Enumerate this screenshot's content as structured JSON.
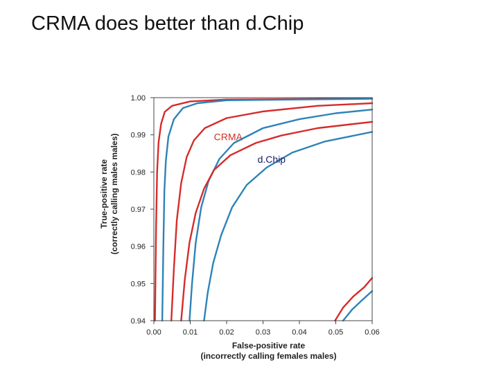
{
  "slide": {
    "title": "CRMA does better than d.Chip"
  },
  "chart_data": {
    "type": "line",
    "title": "",
    "xlabel": [
      "False-positive rate",
      "(incorrectly calling females males)"
    ],
    "ylabel": [
      "True-positive rate",
      "(correctly calling males males)"
    ],
    "xlim": [
      0.0,
      0.06
    ],
    "ylim": [
      0.94,
      1.0
    ],
    "x_ticks": [
      "0.00",
      "0.01",
      "0.02",
      "0.03",
      "0.04",
      "0.05",
      "0.06"
    ],
    "y_ticks": [
      "1.00",
      "0.99",
      "0.98",
      "0.97",
      "0.96",
      "0.95",
      "0.94"
    ],
    "annotations": [
      {
        "text": "CRMA",
        "color": "#cc3322",
        "at": [
          0.0165,
          0.9885
        ]
      },
      {
        "text": "d.Chip",
        "color": "#1a1a66",
        "at": [
          0.0285,
          0.9825
        ]
      }
    ],
    "colors": {
      "CRMA": "#d62b2b",
      "dChip": "#2d82b8"
    },
    "series": [
      {
        "method": "CRMA",
        "values": [
          [
            0.0003,
            0.94
          ],
          [
            0.0006,
            0.965
          ],
          [
            0.0009,
            0.98
          ],
          [
            0.0013,
            0.988
          ],
          [
            0.002,
            0.993
          ],
          [
            0.003,
            0.9962
          ],
          [
            0.005,
            0.9978
          ],
          [
            0.01,
            0.999
          ],
          [
            0.02,
            0.9995
          ],
          [
            0.06,
            0.9998
          ]
        ]
      },
      {
        "method": "dChip",
        "values": [
          [
            0.0023,
            0.94
          ],
          [
            0.0026,
            0.96
          ],
          [
            0.0029,
            0.975
          ],
          [
            0.0033,
            0.983
          ],
          [
            0.004,
            0.9895
          ],
          [
            0.0055,
            0.9942
          ],
          [
            0.008,
            0.9972
          ],
          [
            0.012,
            0.9985
          ],
          [
            0.02,
            0.9993
          ],
          [
            0.06,
            0.9997
          ]
        ]
      },
      {
        "method": "CRMA",
        "values": [
          [
            0.0048,
            0.94
          ],
          [
            0.0055,
            0.954
          ],
          [
            0.0063,
            0.967
          ],
          [
            0.0075,
            0.977
          ],
          [
            0.009,
            0.984
          ],
          [
            0.011,
            0.9885
          ],
          [
            0.014,
            0.9918
          ],
          [
            0.02,
            0.9945
          ],
          [
            0.03,
            0.9963
          ],
          [
            0.045,
            0.9978
          ],
          [
            0.06,
            0.9985
          ]
        ]
      },
      {
        "method": "dChip",
        "values": [
          [
            0.0098,
            0.94
          ],
          [
            0.0105,
            0.95
          ],
          [
            0.0115,
            0.961
          ],
          [
            0.013,
            0.9705
          ],
          [
            0.015,
            0.9775
          ],
          [
            0.018,
            0.9835
          ],
          [
            0.022,
            0.9878
          ],
          [
            0.03,
            0.9918
          ],
          [
            0.04,
            0.9942
          ],
          [
            0.05,
            0.9958
          ],
          [
            0.06,
            0.9968
          ]
        ]
      },
      {
        "method": "CRMA",
        "values": [
          [
            0.0075,
            0.94
          ],
          [
            0.0085,
            0.951
          ],
          [
            0.0098,
            0.961
          ],
          [
            0.0115,
            0.969
          ],
          [
            0.0138,
            0.9755
          ],
          [
            0.0165,
            0.9805
          ],
          [
            0.021,
            0.9845
          ],
          [
            0.028,
            0.9878
          ],
          [
            0.035,
            0.9898
          ],
          [
            0.045,
            0.9918
          ],
          [
            0.06,
            0.9935
          ]
        ]
      },
      {
        "method": "dChip",
        "values": [
          [
            0.0138,
            0.94
          ],
          [
            0.0148,
            0.9475
          ],
          [
            0.0163,
            0.9555
          ],
          [
            0.0185,
            0.963
          ],
          [
            0.0215,
            0.9705
          ],
          [
            0.0255,
            0.9765
          ],
          [
            0.031,
            0.9812
          ],
          [
            0.038,
            0.9852
          ],
          [
            0.047,
            0.9882
          ],
          [
            0.06,
            0.9908
          ]
        ]
      },
      {
        "method": "CRMA",
        "values": [
          [
            0.0498,
            0.94
          ],
          [
            0.052,
            0.9435
          ],
          [
            0.0548,
            0.9465
          ],
          [
            0.0578,
            0.949
          ],
          [
            0.06,
            0.9515
          ]
        ]
      },
      {
        "method": "dChip",
        "values": [
          [
            0.052,
            0.94
          ],
          [
            0.0545,
            0.943
          ],
          [
            0.0572,
            0.9455
          ],
          [
            0.06,
            0.948
          ]
        ]
      }
    ]
  }
}
